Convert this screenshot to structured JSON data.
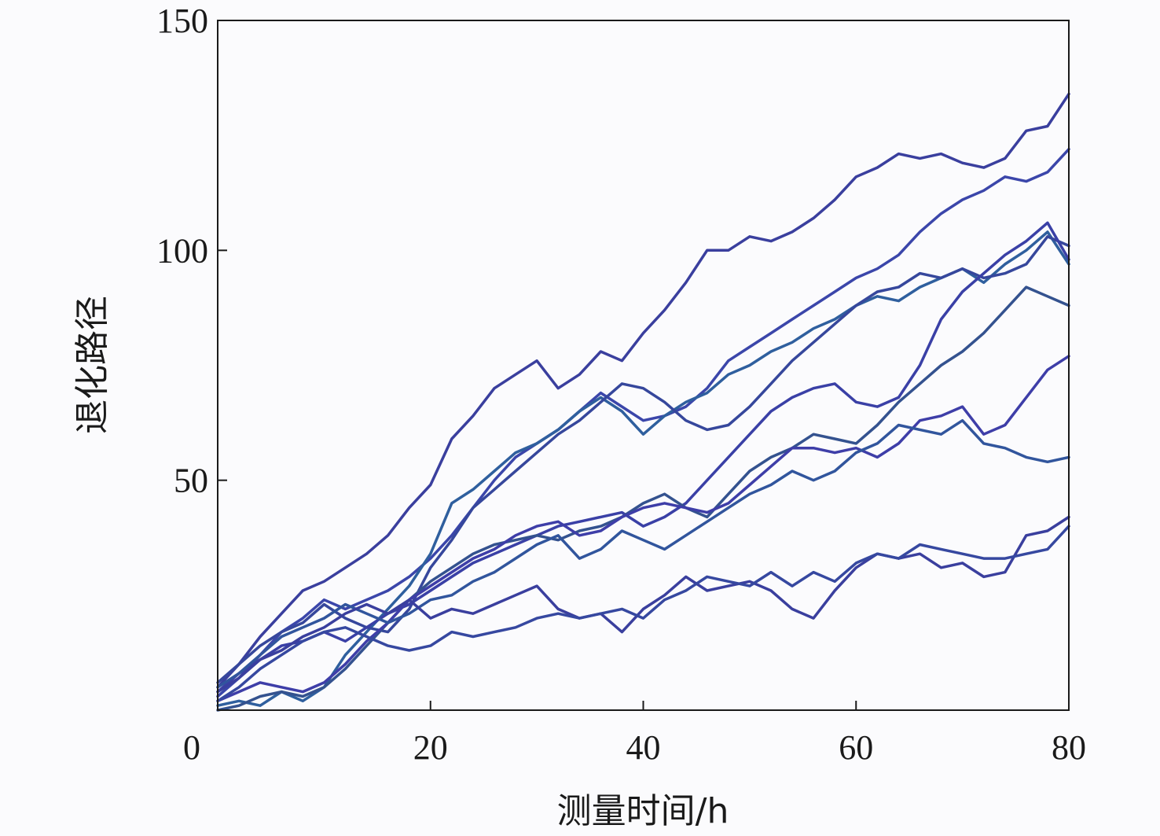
{
  "chart_data": {
    "type": "line",
    "title": "",
    "xlabel": "测量时间/h",
    "ylabel": "退化路径",
    "xlim": [
      0,
      80
    ],
    "ylim": [
      0,
      150
    ],
    "xticks": [
      0,
      20,
      40,
      60,
      80
    ],
    "yticks": [
      50,
      100,
      150
    ],
    "xtick_labels": [
      "0",
      "20",
      "40",
      "60",
      "80"
    ],
    "ytick_labels": [
      "50",
      "100",
      "150"
    ],
    "grid": false,
    "legend": false,
    "colors": [
      "#3a3f9e",
      "#3b46aa",
      "#2f5f9e",
      "#36479c",
      "#3a40a6",
      "#34528f",
      "#3e3ea8",
      "#31559d",
      "#3a3f9e",
      "#3648a0"
    ],
    "series": [
      {
        "x": [
          0,
          2,
          4,
          6,
          8,
          10,
          12,
          14,
          16,
          18,
          20,
          22,
          24,
          26,
          28,
          30,
          32,
          34,
          36,
          38,
          40,
          42,
          44,
          46,
          48,
          50,
          52,
          54,
          56,
          58,
          60,
          62,
          64,
          66,
          68,
          70,
          72,
          74,
          76,
          78,
          80
        ],
        "values": [
          5,
          10,
          16,
          21,
          26,
          28,
          31,
          34,
          38,
          44,
          49,
          59,
          64,
          70,
          73,
          76,
          70,
          73,
          78,
          76,
          82,
          87,
          93,
          100,
          100,
          103,
          102,
          104,
          107,
          111,
          116,
          118,
          121,
          120,
          121,
          119,
          118,
          120,
          126,
          127,
          134
        ]
      },
      {
        "x": [
          0,
          2,
          4,
          6,
          8,
          10,
          12,
          14,
          16,
          18,
          20,
          22,
          24,
          26,
          28,
          30,
          32,
          34,
          36,
          38,
          40,
          42,
          44,
          46,
          48,
          50,
          52,
          54,
          56,
          58,
          60,
          62,
          64,
          66,
          68,
          70,
          72,
          74,
          76,
          78,
          80
        ],
        "values": [
          3,
          7,
          12,
          17,
          20,
          24,
          22,
          24,
          26,
          29,
          33,
          38,
          44,
          50,
          55,
          58,
          61,
          65,
          69,
          66,
          63,
          64,
          66,
          70,
          76,
          79,
          82,
          85,
          88,
          91,
          94,
          96,
          99,
          104,
          108,
          111,
          113,
          116,
          115,
          117,
          122
        ]
      },
      {
        "x": [
          0,
          2,
          4,
          6,
          8,
          10,
          12,
          14,
          16,
          18,
          20,
          22,
          24,
          26,
          28,
          30,
          32,
          34,
          36,
          38,
          40,
          42,
          44,
          46,
          48,
          50,
          52,
          54,
          56,
          58,
          60,
          62,
          64,
          66,
          68,
          70,
          72,
          74,
          76,
          78,
          80
        ],
        "values": [
          1,
          2,
          1,
          4,
          2,
          5,
          12,
          17,
          22,
          27,
          34,
          45,
          48,
          52,
          56,
          58,
          61,
          65,
          68,
          65,
          60,
          64,
          67,
          69,
          73,
          75,
          78,
          80,
          83,
          85,
          88,
          90,
          89,
          92,
          94,
          96,
          93,
          97,
          100,
          104,
          97
        ]
      },
      {
        "x": [
          0,
          2,
          4,
          6,
          8,
          10,
          12,
          14,
          16,
          18,
          20,
          22,
          24,
          26,
          28,
          30,
          32,
          34,
          36,
          38,
          40,
          42,
          44,
          46,
          48,
          50,
          52,
          54,
          56,
          58,
          60,
          62,
          64,
          66,
          68,
          70,
          72,
          74,
          76,
          78,
          80
        ],
        "values": [
          6,
          10,
          14,
          17,
          19,
          23,
          20,
          18,
          17,
          22,
          31,
          37,
          44,
          48,
          52,
          56,
          60,
          63,
          67,
          71,
          70,
          67,
          63,
          61,
          62,
          66,
          71,
          76,
          80,
          84,
          88,
          91,
          92,
          95,
          94,
          96,
          94,
          95,
          97,
          103,
          101
        ]
      },
      {
        "x": [
          0,
          2,
          4,
          6,
          8,
          10,
          12,
          14,
          16,
          18,
          20,
          22,
          24,
          26,
          28,
          30,
          32,
          34,
          36,
          38,
          40,
          42,
          44,
          46,
          48,
          50,
          52,
          54,
          56,
          58,
          60,
          62,
          64,
          66,
          68,
          70,
          72,
          74,
          76,
          78,
          80
        ],
        "values": [
          4,
          8,
          11,
          14,
          15,
          17,
          15,
          18,
          21,
          23,
          26,
          29,
          32,
          34,
          36,
          38,
          40,
          41,
          42,
          43,
          40,
          42,
          45,
          50,
          55,
          60,
          65,
          68,
          70,
          71,
          67,
          66,
          68,
          75,
          85,
          91,
          95,
          99,
          102,
          106,
          98
        ]
      },
      {
        "x": [
          0,
          2,
          4,
          6,
          8,
          10,
          12,
          14,
          16,
          18,
          20,
          22,
          24,
          26,
          28,
          30,
          32,
          34,
          36,
          38,
          40,
          42,
          44,
          46,
          48,
          50,
          52,
          54,
          56,
          58,
          60,
          62,
          64,
          66,
          68,
          70,
          72,
          74,
          76,
          78,
          80
        ],
        "values": [
          0,
          1,
          3,
          4,
          3,
          5,
          9,
          14,
          19,
          24,
          28,
          31,
          34,
          36,
          37,
          38,
          37,
          39,
          40,
          42,
          45,
          47,
          44,
          42,
          47,
          52,
          55,
          57,
          60,
          59,
          58,
          62,
          67,
          71,
          75,
          78,
          82,
          87,
          92,
          90,
          88
        ]
      },
      {
        "x": [
          0,
          2,
          4,
          6,
          8,
          10,
          12,
          14,
          16,
          18,
          20,
          22,
          24,
          26,
          28,
          30,
          32,
          34,
          36,
          38,
          40,
          42,
          44,
          46,
          48,
          50,
          52,
          54,
          56,
          58,
          60,
          62,
          64,
          66,
          68,
          70,
          72,
          74,
          76,
          78,
          80
        ],
        "values": [
          2,
          4,
          6,
          5,
          4,
          6,
          10,
          15,
          19,
          24,
          27,
          30,
          33,
          35,
          38,
          40,
          41,
          38,
          39,
          42,
          44,
          45,
          44,
          43,
          45,
          49,
          53,
          57,
          57,
          56,
          57,
          55,
          58,
          63,
          64,
          66,
          60,
          62,
          68,
          74,
          77
        ]
      },
      {
        "x": [
          0,
          2,
          4,
          6,
          8,
          10,
          12,
          14,
          16,
          18,
          20,
          22,
          24,
          26,
          28,
          30,
          32,
          34,
          36,
          38,
          40,
          42,
          44,
          46,
          48,
          50,
          52,
          54,
          56,
          58,
          60,
          62,
          64,
          66,
          68,
          70,
          72,
          74,
          76,
          78,
          80
        ],
        "values": [
          5,
          8,
          12,
          16,
          18,
          20,
          23,
          21,
          19,
          21,
          24,
          25,
          28,
          30,
          33,
          36,
          38,
          33,
          35,
          39,
          37,
          35,
          38,
          41,
          44,
          47,
          49,
          52,
          50,
          52,
          56,
          58,
          62,
          61,
          60,
          63,
          58,
          57,
          55,
          54,
          55
        ]
      },
      {
        "x": [
          0,
          2,
          4,
          6,
          8,
          10,
          12,
          14,
          16,
          18,
          20,
          22,
          24,
          26,
          28,
          30,
          32,
          34,
          36,
          38,
          40,
          42,
          44,
          46,
          48,
          50,
          52,
          54,
          56,
          58,
          60,
          62,
          64,
          66,
          68,
          70,
          72,
          74,
          76,
          78,
          80
        ],
        "values": [
          4,
          7,
          11,
          13,
          16,
          18,
          21,
          23,
          21,
          24,
          20,
          22,
          21,
          23,
          25,
          27,
          22,
          20,
          21,
          17,
          22,
          25,
          29,
          26,
          27,
          28,
          26,
          22,
          20,
          26,
          31,
          34,
          33,
          34,
          31,
          32,
          29,
          30,
          38,
          39,
          42
        ]
      },
      {
        "x": [
          0,
          2,
          4,
          6,
          8,
          10,
          12,
          14,
          16,
          18,
          20,
          22,
          24,
          26,
          28,
          30,
          32,
          34,
          36,
          38,
          40,
          42,
          44,
          46,
          48,
          50,
          52,
          54,
          56,
          58,
          60,
          62,
          64,
          66,
          68,
          70,
          72,
          74,
          76,
          78,
          80
        ],
        "values": [
          2,
          5,
          9,
          12,
          15,
          17,
          18,
          16,
          14,
          13,
          14,
          17,
          16,
          17,
          18,
          20,
          21,
          20,
          21,
          22,
          20,
          24,
          26,
          29,
          28,
          27,
          30,
          27,
          30,
          28,
          32,
          34,
          33,
          36,
          35,
          34,
          33,
          33,
          34,
          35,
          40
        ]
      }
    ]
  }
}
